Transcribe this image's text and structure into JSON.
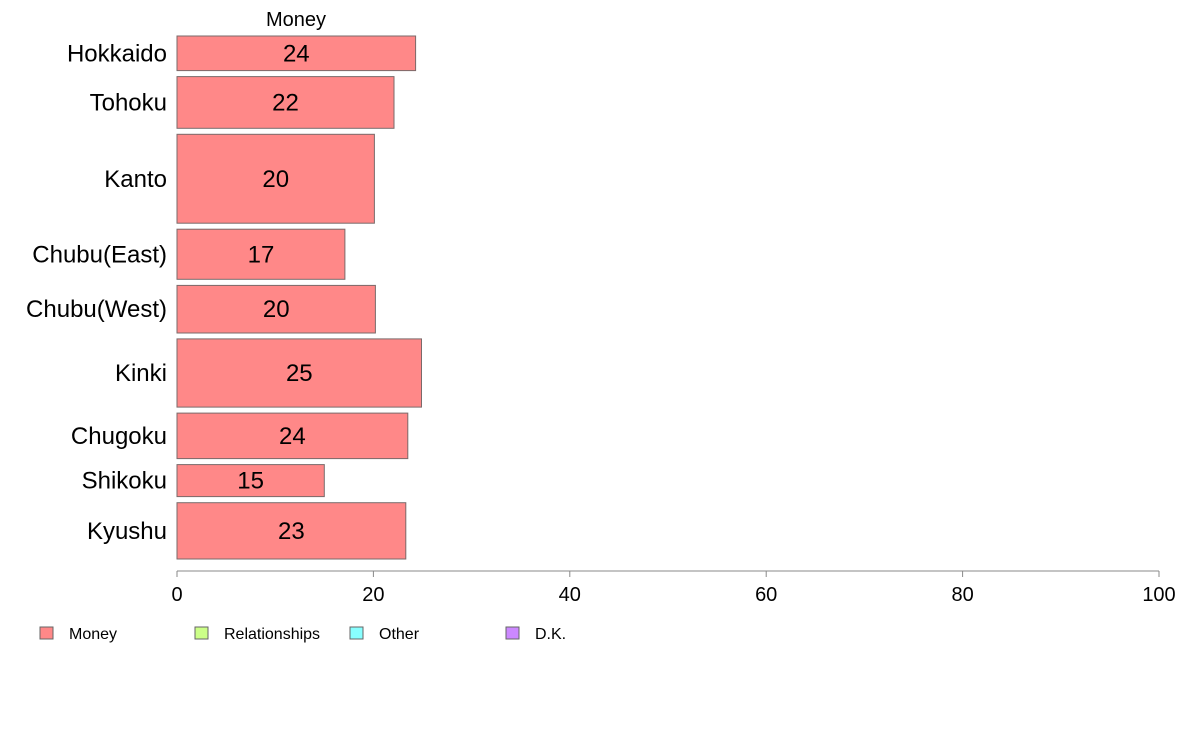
{
  "chart_data": {
    "type": "bar",
    "orientation": "horizontal",
    "panel_title": "Money",
    "categories": [
      "Hokkaido",
      "Tohoku",
      "Kanto",
      "Chubu(East)",
      "Chubu(West)",
      "Kinki",
      "Chugoku",
      "Shikoku",
      "Kyushu"
    ],
    "relative_bar_widths": [
      0.67,
      1.0,
      1.72,
      0.97,
      0.92,
      1.32,
      0.88,
      0.62,
      1.09
    ],
    "series": [
      {
        "name": "Money",
        "values": [
          24.3,
          22.1,
          20.1,
          17.1,
          20.2,
          24.9,
          23.5,
          15.0,
          23.3
        ],
        "labels": [
          "24",
          "22",
          "20",
          "17",
          "20",
          "25",
          "24",
          "15",
          "23"
        ],
        "color": "#ff8888"
      }
    ],
    "xlim": [
      0,
      100
    ],
    "xticks": [
      0,
      20,
      40,
      60,
      80,
      100
    ],
    "xtick_labels": [
      "0",
      "20",
      "40",
      "60",
      "80",
      "100"
    ],
    "grid": false,
    "legend": {
      "position": "bottom-left",
      "items": [
        {
          "label": "Money",
          "color": "#ff8888"
        },
        {
          "label": "Relationships",
          "color": "#ccff88"
        },
        {
          "label": "Other",
          "color": "#88ffff"
        },
        {
          "label": "D.K.",
          "color": "#cc88ff"
        }
      ]
    },
    "colors": {
      "bar_border": "#7a6a6a",
      "axis": "#888888"
    }
  }
}
